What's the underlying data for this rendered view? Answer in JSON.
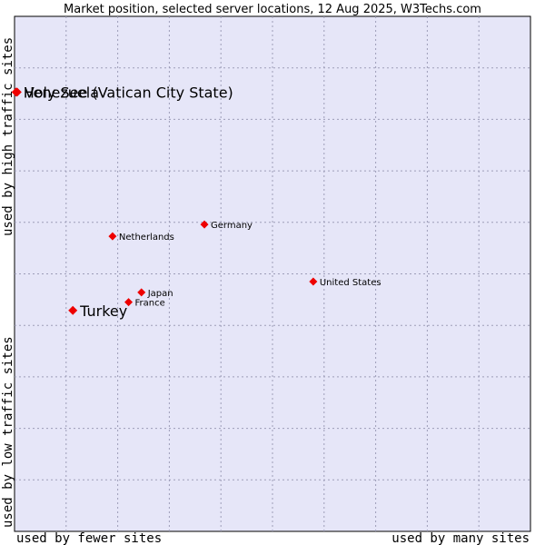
{
  "chart_data": {
    "type": "scatter",
    "title": "Market position, selected server locations, 12 Aug 2025, W3Techs.com",
    "x_axis": {
      "low_label": "used by fewer sites",
      "high_label": "used by many sites"
    },
    "y_axis": {
      "low_label": "used by low traffic sites",
      "high_label": "used by high traffic sites"
    },
    "xlim": [
      0,
      100
    ],
    "ylim": [
      0,
      100
    ],
    "grid": true,
    "colors": {
      "plot_background": "#e6e6f8",
      "grid": "#9d9db8",
      "marker": "#ee0000"
    },
    "points": [
      {
        "label": "Holy See (Vatican City State)",
        "x": 0.3,
        "y": 85.3,
        "highlight": true
      },
      {
        "label": "Venezuela",
        "x": 0.5,
        "y": 85.3,
        "highlight": true
      },
      {
        "label": "Turkey",
        "x": 11.3,
        "y": 42.9,
        "highlight": true
      },
      {
        "label": "Netherlands",
        "x": 19.0,
        "y": 57.3,
        "highlight": false
      },
      {
        "label": "Germany",
        "x": 36.8,
        "y": 59.6,
        "highlight": false
      },
      {
        "label": "Japan",
        "x": 24.6,
        "y": 46.4,
        "highlight": false
      },
      {
        "label": "France",
        "x": 22.1,
        "y": 44.5,
        "highlight": false
      },
      {
        "label": "United States",
        "x": 57.9,
        "y": 48.5,
        "highlight": false
      }
    ]
  }
}
